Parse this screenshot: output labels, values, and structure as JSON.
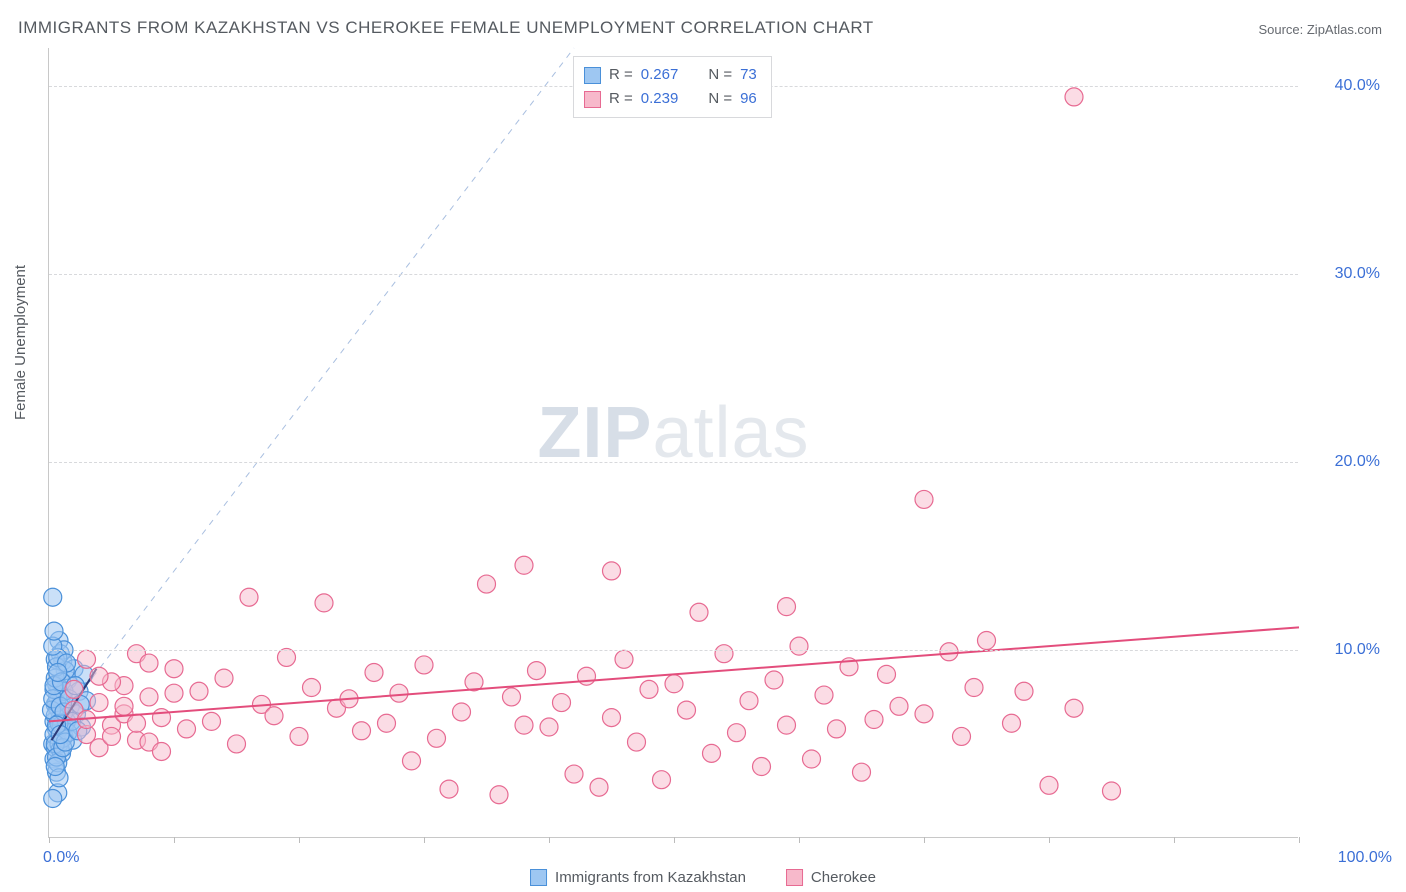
{
  "title": "IMMIGRANTS FROM KAZAKHSTAN VS CHEROKEE FEMALE UNEMPLOYMENT CORRELATION CHART",
  "source_label": "Source: ",
  "source_name": "ZipAtlas.com",
  "ylabel": "Female Unemployment",
  "watermark_zip": "ZIP",
  "watermark_atlas": "atlas",
  "chart": {
    "type": "scatter",
    "xlim": [
      0,
      100
    ],
    "ylim": [
      0,
      42
    ],
    "x_unit": "%",
    "y_unit": "%",
    "xtick_positions": [
      0,
      10,
      20,
      30,
      40,
      50,
      60,
      70,
      80,
      90,
      100
    ],
    "xtick_labels": {
      "0": "0.0%",
      "100": "100.0%"
    },
    "ytick_positions": [
      10,
      20,
      30,
      40
    ],
    "ytick_labels": [
      "10.0%",
      "20.0%",
      "30.0%",
      "40.0%"
    ],
    "grid_color": "#d8d9dc",
    "axis_color": "#c8c8c8",
    "background_color": "#ffffff",
    "marker_radius": 9,
    "marker_stroke_width": 1.2,
    "line_width": 2
  },
  "series": [
    {
      "name": "Immigrants from Kazakhstan",
      "key": "kazakhstan",
      "R": "0.267",
      "N": "73",
      "fill": "#9ec7f2",
      "fill_opacity": 0.55,
      "stroke": "#4a90d9",
      "trend": {
        "x1": 0.2,
        "y1": 5.2,
        "x2": 3.8,
        "y2": 9.0,
        "color": "#2b3b7a"
      },
      "diag_ref": {
        "x1": 0,
        "y1": 5.5,
        "x2": 42,
        "y2": 42,
        "color": "#a9bfe0",
        "dash": "6,6"
      },
      "points": [
        [
          0.3,
          5.0
        ],
        [
          0.4,
          6.2
        ],
        [
          0.5,
          7.1
        ],
        [
          0.6,
          5.8
        ],
        [
          0.7,
          6.9
        ],
        [
          0.8,
          8.0
        ],
        [
          0.9,
          6.4
        ],
        [
          1.0,
          7.5
        ],
        [
          1.1,
          9.4
        ],
        [
          1.2,
          5.4
        ],
        [
          1.3,
          6.0
        ],
        [
          1.5,
          8.4
        ],
        [
          1.7,
          7.0
        ],
        [
          1.9,
          5.2
        ],
        [
          2.0,
          9.0
        ],
        [
          2.2,
          6.6
        ],
        [
          2.4,
          7.8
        ],
        [
          2.6,
          5.9
        ],
        [
          2.8,
          8.7
        ],
        [
          3.0,
          7.3
        ],
        [
          0.4,
          4.2
        ],
        [
          0.5,
          4.8
        ],
        [
          0.6,
          3.5
        ],
        [
          0.7,
          2.4
        ],
        [
          0.8,
          10.5
        ],
        [
          0.9,
          9.8
        ],
        [
          1.0,
          4.5
        ],
        [
          1.2,
          10.0
        ],
        [
          0.3,
          12.8
        ],
        [
          0.5,
          9.5
        ],
        [
          0.6,
          8.2
        ],
        [
          0.7,
          7.5
        ],
        [
          0.4,
          5.5
        ],
        [
          0.5,
          6.5
        ],
        [
          0.6,
          7.2
        ],
        [
          0.8,
          5.0
        ],
        [
          0.9,
          4.7
        ],
        [
          1.0,
          6.0
        ],
        [
          1.1,
          5.3
        ],
        [
          1.2,
          7.8
        ],
        [
          1.3,
          8.9
        ],
        [
          1.4,
          6.2
        ],
        [
          1.5,
          5.6
        ],
        [
          0.4,
          7.9
        ],
        [
          0.5,
          8.5
        ],
        [
          0.6,
          9.1
        ],
        [
          0.7,
          4.0
        ],
        [
          0.8,
          3.2
        ],
        [
          0.2,
          6.8
        ],
        [
          0.3,
          7.4
        ],
        [
          0.4,
          8.1
        ],
        [
          0.5,
          5.0
        ],
        [
          0.6,
          4.3
        ],
        [
          0.7,
          9.6
        ],
        [
          0.8,
          6.1
        ],
        [
          0.9,
          7.0
        ],
        [
          1.0,
          8.3
        ],
        [
          1.1,
          4.8
        ],
        [
          1.2,
          6.7
        ],
        [
          1.3,
          5.1
        ],
        [
          1.4,
          9.3
        ],
        [
          1.6,
          7.4
        ],
        [
          1.8,
          6.2
        ],
        [
          2.1,
          8.1
        ],
        [
          2.3,
          5.7
        ],
        [
          2.5,
          7.1
        ],
        [
          0.3,
          10.2
        ],
        [
          0.4,
          11.0
        ],
        [
          0.5,
          3.8
        ],
        [
          0.6,
          6.0
        ],
        [
          0.7,
          8.8
        ],
        [
          0.9,
          5.5
        ],
        [
          0.3,
          2.1
        ]
      ]
    },
    {
      "name": "Cherokee",
      "key": "cherokee",
      "R": "0.239",
      "N": "96",
      "fill": "#f7b9cb",
      "fill_opacity": 0.5,
      "stroke": "#e76a92",
      "trend": {
        "x1": 0,
        "y1": 6.2,
        "x2": 100,
        "y2": 11.2,
        "color": "#e34d7c"
      },
      "points": [
        [
          2,
          6.8
        ],
        [
          3,
          5.5
        ],
        [
          4,
          7.2
        ],
        [
          5,
          6.0
        ],
        [
          6,
          8.1
        ],
        [
          7,
          5.2
        ],
        [
          8,
          7.5
        ],
        [
          9,
          6.4
        ],
        [
          10,
          9.0
        ],
        [
          11,
          5.8
        ],
        [
          12,
          7.8
        ],
        [
          13,
          6.2
        ],
        [
          14,
          8.5
        ],
        [
          15,
          5.0
        ],
        [
          16,
          12.8
        ],
        [
          17,
          7.1
        ],
        [
          18,
          6.5
        ],
        [
          19,
          9.6
        ],
        [
          20,
          5.4
        ],
        [
          21,
          8.0
        ],
        [
          22,
          12.5
        ],
        [
          23,
          6.9
        ],
        [
          24,
          7.4
        ],
        [
          25,
          5.7
        ],
        [
          26,
          8.8
        ],
        [
          27,
          6.1
        ],
        [
          28,
          7.7
        ],
        [
          29,
          4.1
        ],
        [
          30,
          9.2
        ],
        [
          31,
          5.3
        ],
        [
          32,
          2.6
        ],
        [
          33,
          6.7
        ],
        [
          34,
          8.3
        ],
        [
          35,
          13.5
        ],
        [
          36,
          2.3
        ],
        [
          37,
          7.5
        ],
        [
          38,
          14.5
        ],
        [
          38,
          6.0
        ],
        [
          39,
          8.9
        ],
        [
          40,
          5.9
        ],
        [
          41,
          7.2
        ],
        [
          42,
          3.4
        ],
        [
          43,
          8.6
        ],
        [
          44,
          2.7
        ],
        [
          45,
          6.4
        ],
        [
          45,
          14.2
        ],
        [
          46,
          9.5
        ],
        [
          47,
          5.1
        ],
        [
          48,
          7.9
        ],
        [
          49,
          3.1
        ],
        [
          50,
          8.2
        ],
        [
          51,
          6.8
        ],
        [
          52,
          12.0
        ],
        [
          53,
          4.5
        ],
        [
          54,
          9.8
        ],
        [
          55,
          5.6
        ],
        [
          56,
          7.3
        ],
        [
          57,
          3.8
        ],
        [
          58,
          8.4
        ],
        [
          59,
          6.0
        ],
        [
          59,
          12.3
        ],
        [
          60,
          10.2
        ],
        [
          61,
          4.2
        ],
        [
          62,
          7.6
        ],
        [
          63,
          5.8
        ],
        [
          64,
          9.1
        ],
        [
          65,
          3.5
        ],
        [
          66,
          6.3
        ],
        [
          67,
          8.7
        ],
        [
          68,
          7.0
        ],
        [
          70,
          6.6
        ],
        [
          70,
          18.0
        ],
        [
          72,
          9.9
        ],
        [
          73,
          5.4
        ],
        [
          74,
          8.0
        ],
        [
          75,
          10.5
        ],
        [
          77,
          6.1
        ],
        [
          78,
          7.8
        ],
        [
          80,
          2.8
        ],
        [
          82,
          6.9
        ],
        [
          85,
          2.5
        ],
        [
          82,
          39.4
        ],
        [
          3,
          9.5
        ],
        [
          4,
          4.8
        ],
        [
          5,
          8.3
        ],
        [
          6,
          6.6
        ],
        [
          7,
          9.8
        ],
        [
          8,
          5.1
        ],
        [
          2,
          7.9
        ],
        [
          3,
          6.3
        ],
        [
          4,
          8.6
        ],
        [
          5,
          5.4
        ],
        [
          6,
          7.0
        ],
        [
          7,
          6.1
        ],
        [
          8,
          9.3
        ],
        [
          9,
          4.6
        ],
        [
          10,
          7.7
        ]
      ]
    }
  ],
  "legend_stats_labels": {
    "R": "R =",
    "N": "N ="
  },
  "legend_bottom": [
    {
      "label": "Immigrants from Kazakhstan",
      "fill": "#9ec7f2",
      "stroke": "#4a90d9"
    },
    {
      "label": "Cherokee",
      "fill": "#f7b9cb",
      "stroke": "#e76a92"
    }
  ]
}
